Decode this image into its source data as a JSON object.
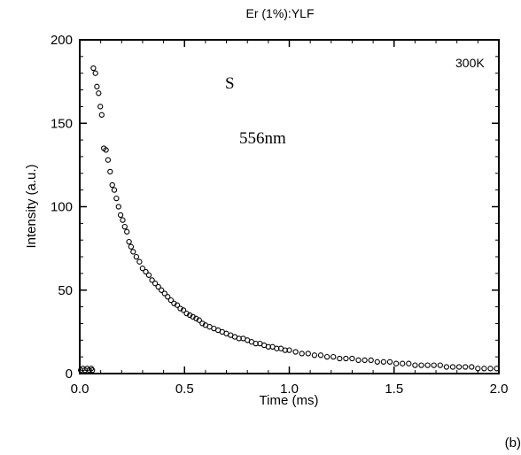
{
  "chart_data": {
    "type": "scatter",
    "title": "Er (1%):YLF",
    "xlabel": "Time (ms)",
    "ylabel": "Intensity (a.u.)",
    "xlim": [
      0.0,
      2.0
    ],
    "ylim": [
      0,
      200
    ],
    "x_ticks": [
      "0.0",
      "0.5",
      "1.0",
      "1.5",
      "2.0"
    ],
    "y_ticks": [
      "0",
      "50",
      "100",
      "150",
      "200"
    ],
    "x_tick_values": [
      0.0,
      0.5,
      1.0,
      1.5,
      2.0
    ],
    "y_tick_values": [
      0,
      50,
      100,
      150,
      200
    ],
    "grid": false,
    "annotations": {
      "temperature": "300K",
      "transition": "S",
      "wavelength": "556nm",
      "panel": "(b)"
    },
    "series": [
      {
        "marker": "open-circle",
        "points": [
          [
            0.005,
            2
          ],
          [
            0.015,
            3
          ],
          [
            0.025,
            2
          ],
          [
            0.035,
            3
          ],
          [
            0.045,
            2
          ],
          [
            0.055,
            3
          ],
          [
            0.06,
            2
          ],
          [
            0.065,
            183
          ],
          [
            0.075,
            180
          ],
          [
            0.082,
            172
          ],
          [
            0.09,
            168
          ],
          [
            0.098,
            160
          ],
          [
            0.105,
            155
          ],
          [
            0.115,
            135
          ],
          [
            0.125,
            134
          ],
          [
            0.135,
            128
          ],
          [
            0.145,
            121
          ],
          [
            0.155,
            113
          ],
          [
            0.165,
            110
          ],
          [
            0.175,
            105
          ],
          [
            0.185,
            100
          ],
          [
            0.195,
            95
          ],
          [
            0.205,
            92
          ],
          [
            0.215,
            88
          ],
          [
            0.225,
            85
          ],
          [
            0.235,
            79
          ],
          [
            0.245,
            76
          ],
          [
            0.255,
            73
          ],
          [
            0.27,
            70
          ],
          [
            0.285,
            67
          ],
          [
            0.3,
            63
          ],
          [
            0.315,
            61
          ],
          [
            0.33,
            59
          ],
          [
            0.345,
            56
          ],
          [
            0.36,
            54
          ],
          [
            0.375,
            52
          ],
          [
            0.39,
            50
          ],
          [
            0.405,
            48
          ],
          [
            0.42,
            46
          ],
          [
            0.435,
            44
          ],
          [
            0.45,
            42
          ],
          [
            0.465,
            41
          ],
          [
            0.48,
            39
          ],
          [
            0.495,
            38
          ],
          [
            0.51,
            36
          ],
          [
            0.525,
            35
          ],
          [
            0.54,
            34
          ],
          [
            0.555,
            33
          ],
          [
            0.57,
            32
          ],
          [
            0.585,
            30
          ],
          [
            0.6,
            29
          ],
          [
            0.62,
            28
          ],
          [
            0.64,
            27
          ],
          [
            0.66,
            26
          ],
          [
            0.68,
            25
          ],
          [
            0.7,
            24
          ],
          [
            0.72,
            23
          ],
          [
            0.74,
            22
          ],
          [
            0.76,
            21
          ],
          [
            0.78,
            21
          ],
          [
            0.8,
            20
          ],
          [
            0.82,
            19
          ],
          [
            0.84,
            18
          ],
          [
            0.86,
            18
          ],
          [
            0.88,
            17
          ],
          [
            0.9,
            16
          ],
          [
            0.92,
            16
          ],
          [
            0.94,
            15
          ],
          [
            0.96,
            15
          ],
          [
            0.98,
            14
          ],
          [
            1.0,
            14
          ],
          [
            1.03,
            13
          ],
          [
            1.06,
            12
          ],
          [
            1.09,
            12
          ],
          [
            1.12,
            11
          ],
          [
            1.15,
            11
          ],
          [
            1.18,
            10
          ],
          [
            1.21,
            10
          ],
          [
            1.24,
            9
          ],
          [
            1.27,
            9
          ],
          [
            1.3,
            9
          ],
          [
            1.33,
            8
          ],
          [
            1.36,
            8
          ],
          [
            1.39,
            8
          ],
          [
            1.42,
            7
          ],
          [
            1.45,
            7
          ],
          [
            1.48,
            7
          ],
          [
            1.51,
            6
          ],
          [
            1.54,
            6
          ],
          [
            1.57,
            6
          ],
          [
            1.6,
            5
          ],
          [
            1.63,
            5
          ],
          [
            1.66,
            5
          ],
          [
            1.69,
            5
          ],
          [
            1.72,
            5
          ],
          [
            1.75,
            4
          ],
          [
            1.78,
            4
          ],
          [
            1.81,
            4
          ],
          [
            1.84,
            4
          ],
          [
            1.87,
            4
          ],
          [
            1.9,
            3
          ],
          [
            1.93,
            3
          ],
          [
            1.96,
            3
          ],
          [
            1.99,
            3
          ]
        ]
      }
    ]
  }
}
